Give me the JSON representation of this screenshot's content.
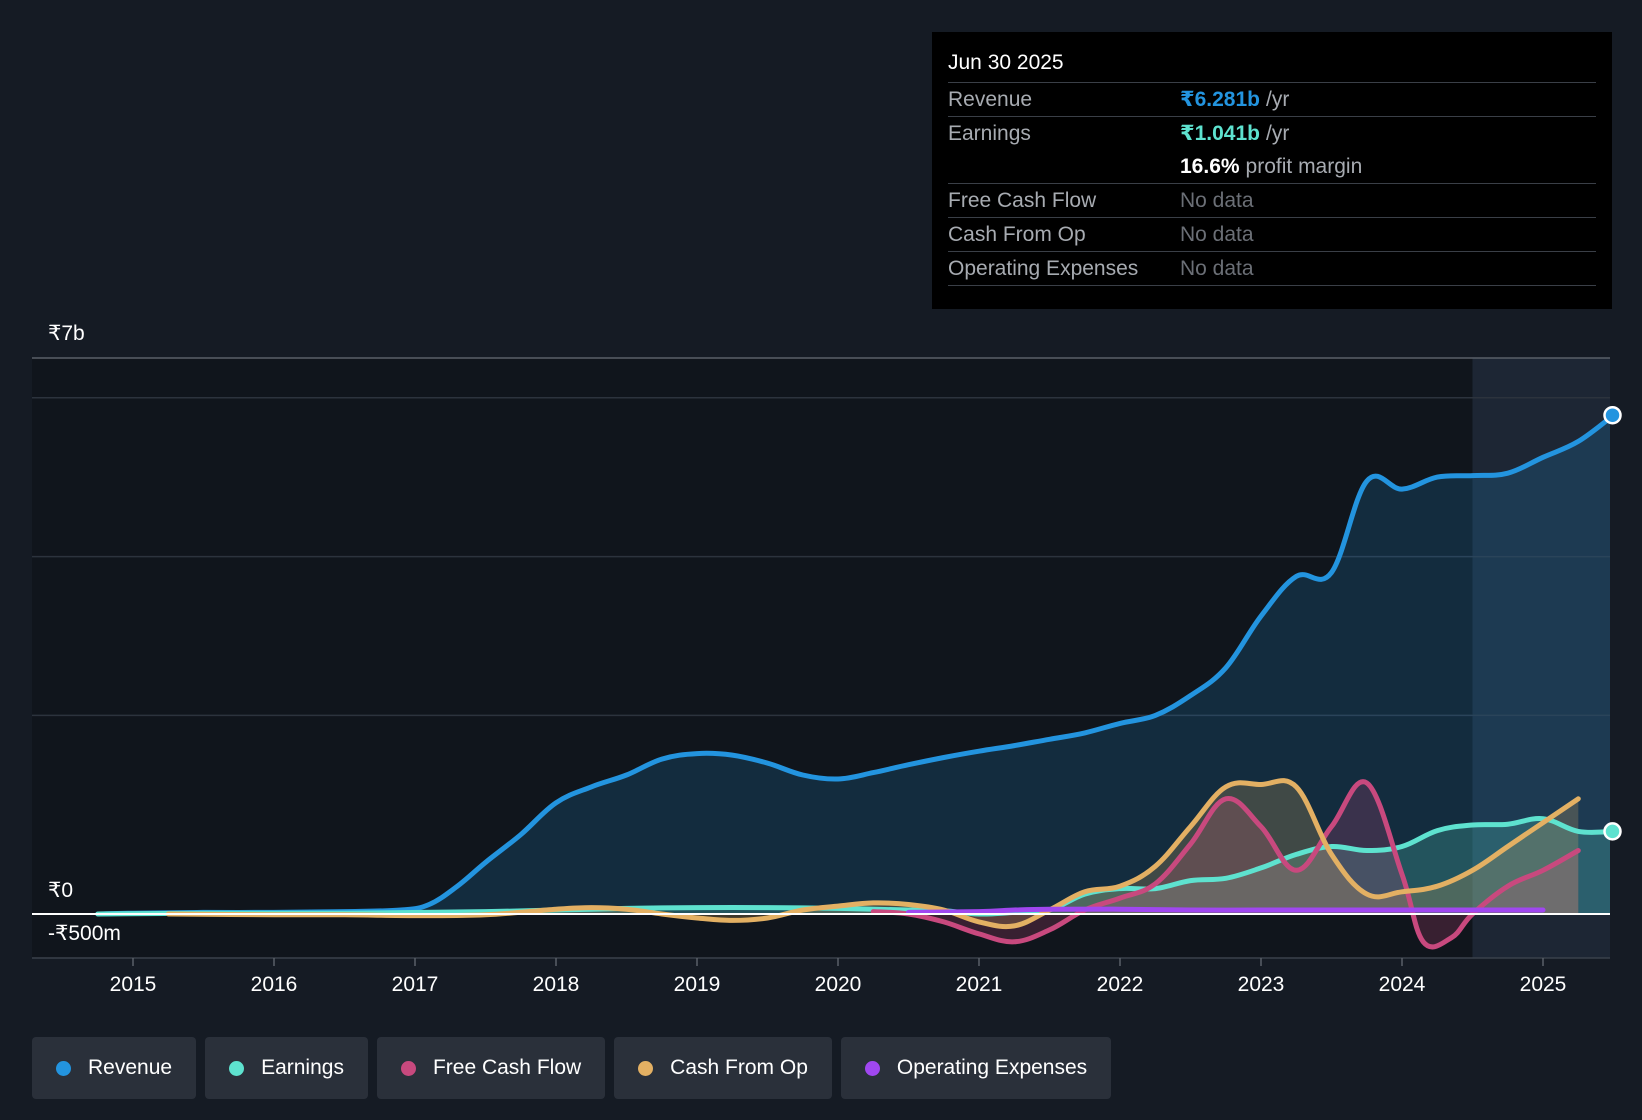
{
  "colors": {
    "background": "#151b24",
    "revenue": "#2394df",
    "earnings": "#5ee2cf",
    "free_cash_flow": "#c8497e",
    "cash_from_op": "#e3b063",
    "operating_expenses": "#a047f0"
  },
  "tooltip": {
    "date": "Jun 30 2025",
    "rows": [
      {
        "label": "Revenue",
        "value": "₹6.281b",
        "unit": "/yr"
      },
      {
        "label": "Earnings",
        "value": "₹1.041b",
        "unit": "/yr"
      },
      {
        "label": "",
        "value": "16.6%",
        "unit": "profit margin"
      },
      {
        "label": "Free Cash Flow",
        "value": "No data",
        "unit": ""
      },
      {
        "label": "Cash From Op",
        "value": "No data",
        "unit": ""
      },
      {
        "label": "Operating Expenses",
        "value": "No data",
        "unit": ""
      }
    ]
  },
  "legend": [
    {
      "label": "Revenue",
      "icon": "revenue-dot-icon"
    },
    {
      "label": "Earnings",
      "icon": "earnings-dot-icon"
    },
    {
      "label": "Free Cash Flow",
      "icon": "free-cash-flow-dot-icon"
    },
    {
      "label": "Cash From Op",
      "icon": "cash-from-op-dot-icon"
    },
    {
      "label": "Operating Expenses",
      "icon": "operating-expenses-dot-icon"
    }
  ],
  "chart_data": {
    "type": "area",
    "title": "",
    "xlabel": "",
    "ylabel": "",
    "y_top_label": "₹7b",
    "y_zero_label": "₹0",
    "y_bottom_label": "-₹500m",
    "ylim": [
      -0.5,
      7.0
    ],
    "xlim": [
      2014.3,
      2025.5
    ],
    "forecast_start": 2024.5,
    "x_ticks": [
      2015,
      2016,
      2017,
      2018,
      2019,
      2020,
      2021,
      2022,
      2023,
      2024,
      2025
    ],
    "x_tick_labels": [
      "2015",
      "2016",
      "2017",
      "2018",
      "2019",
      "2020",
      "2021",
      "2022",
      "2023",
      "2024",
      "2025"
    ],
    "gridlines": [
      6.5,
      4.5,
      2.5
    ],
    "series": [
      {
        "name": "Revenue",
        "unit": "₹b",
        "fill": true,
        "x": [
          2014.75,
          2015.0,
          2015.5,
          2016.0,
          2016.5,
          2016.9,
          2017.1,
          2017.3,
          2017.5,
          2017.75,
          2018.0,
          2018.25,
          2018.5,
          2018.75,
          2019.0,
          2019.25,
          2019.5,
          2019.75,
          2020.0,
          2020.25,
          2020.5,
          2020.75,
          2021.0,
          2021.25,
          2021.5,
          2021.75,
          2022.0,
          2022.25,
          2022.5,
          2022.75,
          2023.0,
          2023.25,
          2023.5,
          2023.75,
          2024.0,
          2024.25,
          2024.5,
          2024.75,
          2025.0,
          2025.25,
          2025.5
        ],
        "values": [
          0.0,
          0.01,
          0.02,
          0.02,
          0.03,
          0.05,
          0.12,
          0.35,
          0.65,
          1.0,
          1.4,
          1.6,
          1.75,
          1.95,
          2.02,
          2.0,
          1.9,
          1.75,
          1.7,
          1.78,
          1.88,
          1.97,
          2.05,
          2.12,
          2.2,
          2.28,
          2.4,
          2.5,
          2.75,
          3.1,
          3.75,
          4.25,
          4.3,
          5.45,
          5.35,
          5.5,
          5.52,
          5.55,
          5.75,
          5.95,
          6.28
        ]
      },
      {
        "name": "Earnings",
        "unit": "₹b",
        "fill": true,
        "x": [
          2014.75,
          2015.5,
          2016.5,
          2017.5,
          2018.0,
          2018.5,
          2019.0,
          2019.5,
          2020.0,
          2020.5,
          2020.75,
          2021.0,
          2021.25,
          2021.5,
          2021.75,
          2022.0,
          2022.25,
          2022.5,
          2022.75,
          2023.0,
          2023.25,
          2023.5,
          2023.75,
          2024.0,
          2024.25,
          2024.5,
          2024.75,
          2025.0,
          2025.25,
          2025.5
        ],
        "values": [
          0.0,
          0.01,
          0.01,
          0.03,
          0.05,
          0.07,
          0.08,
          0.08,
          0.07,
          0.05,
          0.04,
          0.0,
          0.02,
          0.05,
          0.25,
          0.32,
          0.32,
          0.42,
          0.45,
          0.58,
          0.75,
          0.85,
          0.8,
          0.85,
          1.05,
          1.12,
          1.13,
          1.2,
          1.04,
          1.04
        ]
      },
      {
        "name": "Free Cash Flow",
        "unit": "₹b",
        "fill": true,
        "x": [
          2020.25,
          2020.5,
          2020.75,
          2021.0,
          2021.25,
          2021.5,
          2021.75,
          2022.0,
          2022.25,
          2022.5,
          2022.75,
          2023.0,
          2023.25,
          2023.5,
          2023.75,
          2024.0,
          2024.15,
          2024.35,
          2024.5,
          2024.75,
          2025.0,
          2025.25
        ],
        "values": [
          0.03,
          0.0,
          -0.1,
          -0.25,
          -0.35,
          -0.2,
          0.05,
          0.2,
          0.38,
          0.88,
          1.45,
          1.1,
          0.55,
          1.1,
          1.65,
          0.5,
          -0.35,
          -0.3,
          0.0,
          0.35,
          0.55,
          0.8
        ]
      },
      {
        "name": "Cash From Op",
        "unit": "₹b",
        "fill": true,
        "x": [
          2015.25,
          2016.0,
          2016.5,
          2017.0,
          2017.5,
          2018.0,
          2018.25,
          2018.5,
          2018.75,
          2019.0,
          2019.25,
          2019.5,
          2019.75,
          2020.0,
          2020.25,
          2020.5,
          2020.75,
          2021.0,
          2021.25,
          2021.5,
          2021.75,
          2022.0,
          2022.25,
          2022.5,
          2022.75,
          2023.0,
          2023.25,
          2023.5,
          2023.75,
          2024.0,
          2024.25,
          2024.5,
          2024.75,
          2025.0,
          2025.25
        ],
        "values": [
          0.0,
          -0.01,
          -0.01,
          -0.02,
          -0.01,
          0.06,
          0.08,
          0.06,
          0.0,
          -0.05,
          -0.08,
          -0.05,
          0.05,
          0.1,
          0.14,
          0.12,
          0.05,
          -0.1,
          -0.15,
          0.05,
          0.28,
          0.35,
          0.6,
          1.1,
          1.6,
          1.63,
          1.6,
          0.75,
          0.25,
          0.28,
          0.35,
          0.55,
          0.85,
          1.15,
          1.45
        ]
      },
      {
        "name": "Operating Expenses",
        "unit": "₹b",
        "fill": false,
        "x": [
          2020.5,
          2021.0,
          2021.25,
          2021.5,
          2022.0,
          2022.5,
          2023.0,
          2023.5,
          2024.0,
          2024.5,
          2025.0
        ],
        "values": [
          0.02,
          0.03,
          0.05,
          0.06,
          0.06,
          0.05,
          0.05,
          0.05,
          0.05,
          0.05,
          0.05
        ]
      }
    ],
    "end_markers": [
      {
        "series": "Revenue",
        "x": 2025.5,
        "value": 6.28
      },
      {
        "series": "Earnings",
        "x": 2025.5,
        "value": 1.04
      }
    ]
  }
}
